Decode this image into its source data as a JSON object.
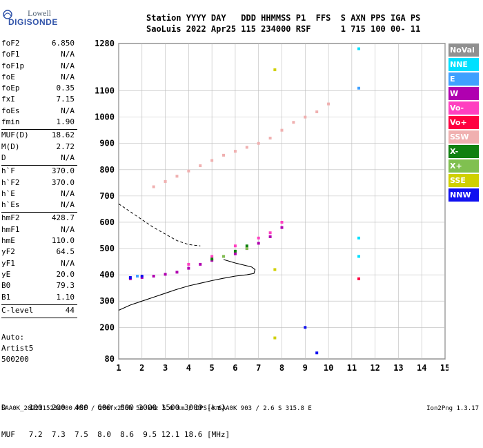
{
  "logo": {
    "line1": "Lowell",
    "line2": "DIGISONDE"
  },
  "header": {
    "line1": "Station YYYY DAY   DDD HHMMSS P1  FFS  S AXN PPS IGA PS",
    "line2": "SaoLuis 2022 Apr25 115 234000 RSF      1 715 100 00- 11"
  },
  "params_group1": [
    {
      "label": "foF2",
      "value": "6.850"
    },
    {
      "label": "foF1",
      "value": "N/A"
    },
    {
      "label": "foF1p",
      "value": "N/A"
    },
    {
      "label": "foE",
      "value": "N/A"
    },
    {
      "label": "foEp",
      "value": "0.35"
    },
    {
      "label": "fxI",
      "value": "7.15"
    },
    {
      "label": "foEs",
      "value": "N/A"
    },
    {
      "label": "fmin",
      "value": "1.90"
    }
  ],
  "params_group2": [
    {
      "label": "MUF(D)",
      "value": "18.62"
    },
    {
      "label": "M(D)",
      "value": "2.72"
    },
    {
      "label": "D",
      "value": "N/A"
    }
  ],
  "params_group3": [
    {
      "label": "h`F",
      "value": "370.0"
    },
    {
      "label": "h`F2",
      "value": "370.0"
    },
    {
      "label": "h`E",
      "value": "N/A"
    },
    {
      "label": "h`Es",
      "value": "N/A"
    }
  ],
  "params_group4": [
    {
      "label": "hmF2",
      "value": "428.7"
    },
    {
      "label": "hmF1",
      "value": "N/A"
    },
    {
      "label": "hmE",
      "value": "110.0"
    },
    {
      "label": "yF2",
      "value": "64.5"
    },
    {
      "label": "yF1",
      "value": "N/A"
    },
    {
      "label": "yE",
      "value": "20.0"
    },
    {
      "label": "B0",
      "value": "79.3"
    },
    {
      "label": "B1",
      "value": "1.10"
    }
  ],
  "params_group5": [
    {
      "label": "C-level",
      "value": "44"
    }
  ],
  "auto": {
    "line1": "Auto:",
    "line2": "Artist5",
    "line3": "500200"
  },
  "legend": [
    {
      "label": "NoVal",
      "color": "#909090"
    },
    {
      "label": "NNE",
      "color": "#00e0ff"
    },
    {
      "label": "E",
      "color": "#3fa0ff"
    },
    {
      "label": "W",
      "color": "#b000b0"
    },
    {
      "label": "Vo-",
      "color": "#ff40c0"
    },
    {
      "label": "Vo+",
      "color": "#ff0040"
    },
    {
      "label": "SSW",
      "color": "#f0b0b0"
    },
    {
      "label": "X-",
      "color": "#108010"
    },
    {
      "label": "X+",
      "color": "#80c050"
    },
    {
      "label": "SSE",
      "color": "#d0d000"
    },
    {
      "label": "NNW",
      "color": "#1010f0"
    }
  ],
  "muf_table": {
    "line1": "D     100  200  400  600  800 1000 1500 3000 [km]",
    "line2": "MUF   7.2  7.3  7.5  8.0  8.6  9.5 12.1 18.6 [MHz]"
  },
  "footer": {
    "text": "SAA0K_2022115234000.RSF / 280fx256h 50 kHz 5.0 km / DPS-4 SAA0K 903 / 2.6 S 315.8 E",
    "version": "Ion2Png 1.3.17"
  },
  "chart_data": {
    "type": "scatter",
    "title": "",
    "xlabel": "",
    "ylabel": "",
    "xlim": [
      1,
      15
    ],
    "ylim": [
      80,
      1280
    ],
    "x_ticks": [
      1,
      2,
      3,
      4,
      5,
      6,
      7,
      8,
      9,
      10,
      11,
      12,
      13,
      14,
      15
    ],
    "y_ticks": [
      80,
      200,
      300,
      400,
      500,
      600,
      700,
      800,
      900,
      1000,
      1100,
      1280
    ],
    "grid": true,
    "legend_position": "right",
    "series": [
      {
        "name": "SSW",
        "points": [
          [
            2.5,
            735
          ],
          [
            3.0,
            755
          ],
          [
            3.5,
            775
          ],
          [
            4.0,
            795
          ],
          [
            4.5,
            815
          ],
          [
            5.0,
            835
          ],
          [
            5.5,
            855
          ],
          [
            6.0,
            870
          ],
          [
            6.5,
            885
          ],
          [
            7.0,
            900
          ],
          [
            7.5,
            920
          ],
          [
            8.0,
            950
          ],
          [
            8.5,
            980
          ],
          [
            9.0,
            1000
          ],
          [
            9.5,
            1020
          ],
          [
            10.0,
            1050
          ]
        ]
      },
      {
        "name": "W",
        "points": [
          [
            1.5,
            385
          ],
          [
            2.0,
            390
          ],
          [
            2.5,
            395
          ],
          [
            3.0,
            402
          ],
          [
            3.5,
            410
          ],
          [
            4.0,
            425
          ],
          [
            4.5,
            440
          ],
          [
            5.0,
            455
          ],
          [
            5.5,
            470
          ],
          [
            6.0,
            480
          ],
          [
            6.5,
            500
          ],
          [
            7.0,
            520
          ],
          [
            7.5,
            545
          ],
          [
            8.0,
            580
          ]
        ]
      },
      {
        "name": "Vo-",
        "points": [
          [
            4.0,
            440
          ],
          [
            5.0,
            470
          ],
          [
            6.0,
            510
          ],
          [
            7.0,
            540
          ],
          [
            7.5,
            560
          ],
          [
            8.0,
            600
          ]
        ]
      },
      {
        "name": "X-",
        "points": [
          [
            5.0,
            460
          ],
          [
            6.0,
            490
          ],
          [
            6.5,
            510
          ]
        ]
      },
      {
        "name": "X+",
        "points": [
          [
            5.5,
            470
          ],
          [
            6.5,
            500
          ]
        ]
      },
      {
        "name": "NNE",
        "points": [
          [
            11.3,
            1260
          ],
          [
            11.3,
            540
          ],
          [
            11.3,
            470
          ]
        ]
      },
      {
        "name": "E",
        "points": [
          [
            11.3,
            1110
          ],
          [
            1.8,
            395
          ]
        ]
      },
      {
        "name": "NNW",
        "points": [
          [
            1.5,
            390
          ],
          [
            2.0,
            395
          ],
          [
            9.0,
            200
          ],
          [
            9.5,
            103
          ]
        ]
      },
      {
        "name": "SSE",
        "points": [
          [
            7.7,
            1180
          ],
          [
            7.7,
            420
          ],
          [
            7.7,
            160
          ]
        ]
      },
      {
        "name": "Vo+",
        "points": [
          [
            11.3,
            385
          ]
        ]
      }
    ],
    "profile_dashed": [
      [
        1.0,
        670
      ],
      [
        1.5,
        640
      ],
      [
        2.0,
        610
      ],
      [
        2.5,
        580
      ],
      [
        3.0,
        555
      ],
      [
        3.5,
        530
      ],
      [
        4.0,
        515
      ],
      [
        4.5,
        510
      ]
    ],
    "profile_solid": [
      [
        1.0,
        265
      ],
      [
        1.5,
        285
      ],
      [
        2.0,
        300
      ],
      [
        2.5,
        315
      ],
      [
        3.0,
        330
      ],
      [
        3.5,
        345
      ],
      [
        4.0,
        358
      ],
      [
        4.5,
        368
      ],
      [
        5.0,
        378
      ],
      [
        5.5,
        387
      ],
      [
        6.0,
        395
      ],
      [
        6.5,
        400
      ],
      [
        6.8,
        405
      ],
      [
        6.85,
        420
      ],
      [
        6.7,
        430
      ],
      [
        6.0,
        445
      ],
      [
        5.5,
        458
      ]
    ]
  }
}
